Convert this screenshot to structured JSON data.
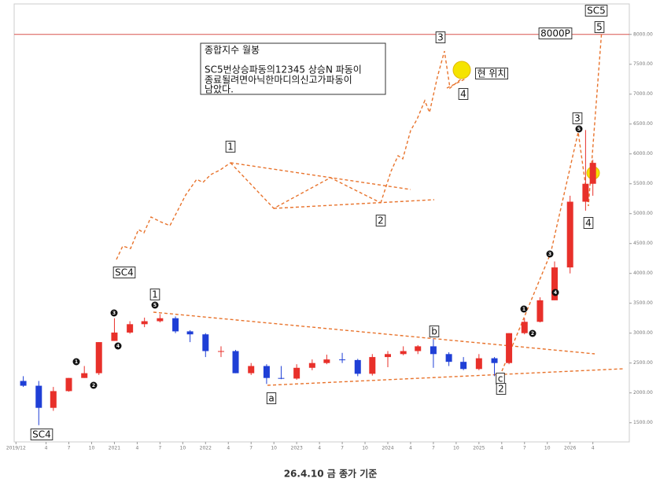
{
  "chart_data": {
    "type": "candlestick",
    "title": "종합지수 월봉",
    "note": [
      "SC5번상승파동의12345 상승N 파동이",
      "종료될려면아닉한마디의신고가파동이",
      "남았다."
    ],
    "x": [
      2020.0,
      2020.17,
      2020.33,
      2020.5,
      2020.67,
      2020.83,
      2021.0,
      2021.17,
      2021.33,
      2021.5,
      2021.67,
      2021.83,
      2022.0,
      2022.17,
      2022.33,
      2022.5,
      2022.67,
      2022.83,
      2023.0,
      2023.17,
      2023.33,
      2023.5,
      2023.67,
      2023.83,
      2024.0,
      2024.17,
      2024.33,
      2024.5,
      2024.67,
      2024.83,
      2025.0,
      2025.17,
      2025.33,
      2025.5,
      2025.67,
      2025.83,
      2026.0,
      2026.17,
      2026.25
    ],
    "open": [
      2200,
      2120,
      1750,
      2030,
      2250,
      2330,
      2870,
      3010,
      3150,
      3200,
      3250,
      3030,
      2980,
      2700,
      2700,
      2330,
      2450,
      2250,
      2240,
      2420,
      2500,
      2560,
      2550,
      2320,
      2600,
      2650,
      2700,
      2780,
      2650,
      2520,
      2400,
      2580,
      2500,
      3000,
      3190,
      3550,
      4100,
      5200,
      5500
    ],
    "high": [
      2280,
      2200,
      2100,
      2250,
      2450,
      2850,
      3250,
      3200,
      3260,
      3320,
      3280,
      3050,
      3000,
      2780,
      2720,
      2500,
      2480,
      2450,
      2480,
      2560,
      2640,
      2670,
      2570,
      2650,
      2700,
      2780,
      2800,
      2900,
      2680,
      2600,
      2650,
      2600,
      3000,
      3250,
      3600,
      4200,
      5300,
      6400,
      5900
    ],
    "low": [
      2100,
      1460,
      1700,
      2020,
      2250,
      2300,
      2870,
      2990,
      3100,
      3180,
      3000,
      2850,
      2600,
      2600,
      2330,
      2300,
      2150,
      2230,
      2220,
      2380,
      2480,
      2500,
      2280,
      2290,
      2430,
      2630,
      2650,
      2420,
      2450,
      2380,
      2380,
      2280,
      2480,
      2980,
      3180,
      3550,
      4000,
      5050,
      5300
    ],
    "close": [
      2120,
      1750,
      2030,
      2250,
      2330,
      2850,
      3010,
      3150,
      3200,
      3250,
      3030,
      2980,
      2700,
      2700,
      2330,
      2450,
      2250,
      2240,
      2420,
      2500,
      2560,
      2550,
      2320,
      2600,
      2650,
      2700,
      2780,
      2650,
      2520,
      2400,
      2580,
      2500,
      3000,
      3190,
      3550,
      4100,
      5200,
      5500,
      5850
    ],
    "up_color": "#e8302a",
    "down_color": "#1f3fd6",
    "xlim": [
      2019.9,
      2026.65
    ],
    "xticks": [
      {
        "value": 2019.92,
        "label": "2019/12"
      },
      {
        "value": 2020.25,
        "label": "4"
      },
      {
        "value": 2020.5,
        "label": "7"
      },
      {
        "value": 2020.75,
        "label": "10"
      },
      {
        "value": 2021.0,
        "label": "2021"
      },
      {
        "value": 2021.25,
        "label": "4"
      },
      {
        "value": 2021.5,
        "label": "7"
      },
      {
        "value": 2021.75,
        "label": "10"
      },
      {
        "value": 2022.0,
        "label": "2022"
      },
      {
        "value": 2022.25,
        "label": "4"
      },
      {
        "value": 2022.5,
        "label": "7"
      },
      {
        "value": 2022.75,
        "label": "10"
      },
      {
        "value": 2023.0,
        "label": "2023"
      },
      {
        "value": 2023.25,
        "label": "4"
      },
      {
        "value": 2023.5,
        "label": "7"
      },
      {
        "value": 2023.75,
        "label": "10"
      },
      {
        "value": 2024.0,
        "label": "2024"
      },
      {
        "value": 2024.25,
        "label": "4"
      },
      {
        "value": 2024.5,
        "label": "7"
      },
      {
        "value": 2024.75,
        "label": "10"
      },
      {
        "value": 2025.0,
        "label": "2025"
      },
      {
        "value": 2025.25,
        "label": "4"
      },
      {
        "value": 2025.5,
        "label": "7"
      },
      {
        "value": 2025.75,
        "label": "10"
      },
      {
        "value": 2026.0,
        "label": "2026"
      },
      {
        "value": 2026.25,
        "label": "4"
      }
    ],
    "ylim": [
      1180,
      8510
    ],
    "yticks": [
      {
        "value": 1500,
        "label": "1500.00"
      },
      {
        "value": 2000,
        "label": "2000.00"
      },
      {
        "value": 2500,
        "label": "2500.00"
      },
      {
        "value": 3000,
        "label": "3000.00"
      },
      {
        "value": 3500,
        "label": "3500.00"
      },
      {
        "value": 4000,
        "label": "4000.00"
      },
      {
        "value": 4500,
        "label": "4500.00"
      },
      {
        "value": 5000,
        "label": "5000.00"
      },
      {
        "value": 5500,
        "label": "5500.00"
      },
      {
        "value": 6000,
        "label": "6000.00"
      },
      {
        "value": 6500,
        "label": "6500.00"
      },
      {
        "value": 7000,
        "label": "7000.00"
      },
      {
        "value": 7500,
        "label": "7500.00"
      },
      {
        "value": 8000,
        "label": "8000.00"
      }
    ],
    "reference_line": {
      "value": 8000,
      "color": "#d9534f"
    },
    "wave_labels": [
      "SC5",
      "8000P",
      "5",
      "3",
      "4",
      "현 위치",
      "1",
      "2",
      "SC4",
      "3",
      "4",
      "b",
      "a",
      "c",
      "2",
      "SC4",
      "1"
    ],
    "wave_markers": [
      "1",
      "2",
      "3",
      "4",
      "5",
      "1",
      "2",
      "3",
      "4",
      "5"
    ],
    "footer": "26.4.10 금 종가 기준"
  }
}
